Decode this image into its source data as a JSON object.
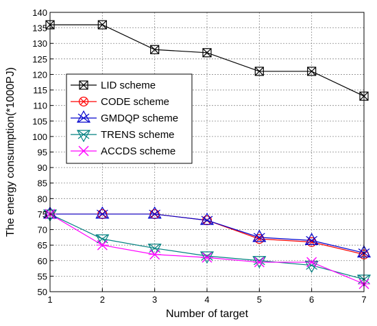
{
  "chart_data": {
    "type": "line",
    "title": "",
    "xlabel": "Number of target",
    "ylabel": "The energy consumption(*1000PJ)",
    "xlim": [
      1,
      7
    ],
    "ylim": [
      50,
      140
    ],
    "x": [
      1,
      2,
      3,
      4,
      5,
      6,
      7
    ],
    "xticks": [
      "1",
      "2",
      "3",
      "4",
      "5",
      "6",
      "7"
    ],
    "yticks": [
      "50",
      "55",
      "60",
      "65",
      "70",
      "75",
      "80",
      "85",
      "90",
      "95",
      "100",
      "105",
      "110",
      "115",
      "120",
      "125",
      "130",
      "135",
      "140"
    ],
    "grid": true,
    "legend_position": "upper-left",
    "series": [
      {
        "name": "LID scheme",
        "color": "#000000",
        "marker": "boxed-x",
        "values": [
          136,
          136,
          128,
          127,
          121,
          121,
          113
        ]
      },
      {
        "name": "CODE scheme",
        "color": "#ff0000",
        "marker": "circled-x",
        "values": [
          75,
          75,
          75,
          73,
          67,
          66,
          62
        ]
      },
      {
        "name": "GMDQP scheme",
        "color": "#0000cc",
        "marker": "triangle-up",
        "values": [
          75,
          75,
          75,
          73,
          67.5,
          66.5,
          62.5
        ]
      },
      {
        "name": "TRENS scheme",
        "color": "#008080",
        "marker": "triangle-down",
        "values": [
          75,
          67,
          64,
          61.5,
          60,
          58.5,
          54
        ]
      },
      {
        "name": "ACCDS scheme",
        "color": "#ff00ff",
        "marker": "x-mark",
        "values": [
          75,
          65,
          62,
          61,
          59.5,
          59.5,
          52.5
        ]
      }
    ]
  }
}
